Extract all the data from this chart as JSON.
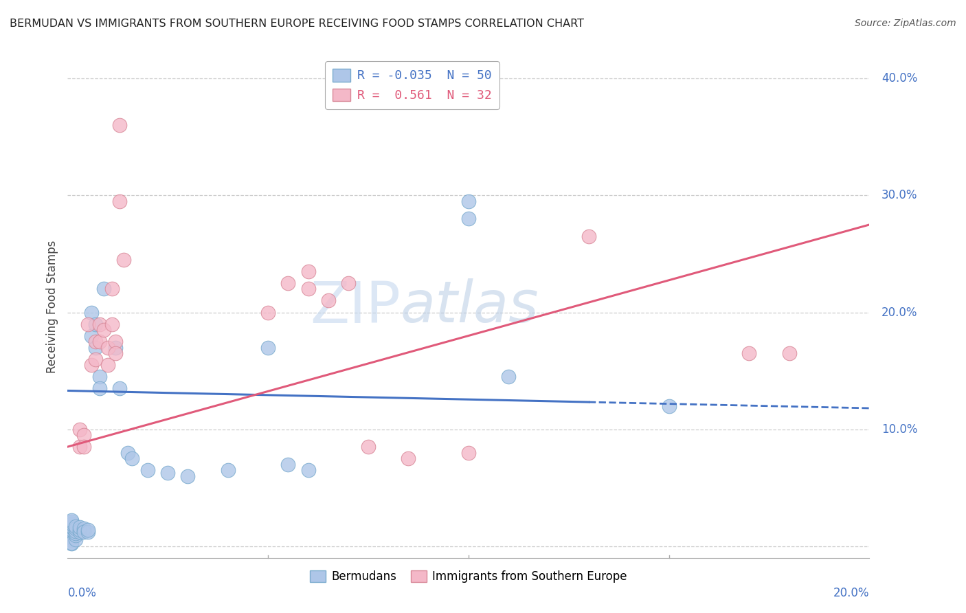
{
  "title": "BERMUDAN VS IMMIGRANTS FROM SOUTHERN EUROPE RECEIVING FOOD STAMPS CORRELATION CHART",
  "source": "Source: ZipAtlas.com",
  "ylabel": "Receiving Food Stamps",
  "xlim": [
    0.0,
    0.2
  ],
  "ylim": [
    -0.01,
    0.42
  ],
  "yticks": [
    0.0,
    0.1,
    0.2,
    0.3,
    0.4
  ],
  "ytick_labels": [
    "",
    "10.0%",
    "20.0%",
    "30.0%",
    "40.0%"
  ],
  "xtick_positions": [
    0.0,
    0.05,
    0.1,
    0.15,
    0.2
  ],
  "watermark_zip": "ZIP",
  "watermark_atlas": "atlas",
  "bermudans_color": "#aec6e8",
  "immigrants_color": "#f4b8c8",
  "bermudans_edge_color": "#7aabce",
  "immigrants_edge_color": "#d88898",
  "bermudans_line_color": "#4472c4",
  "immigrants_line_color": "#e05a7a",
  "legend_label_blue": "R = -0.035  N = 50",
  "legend_label_pink": "R =  0.561  N = 32",
  "blue_scatter": [
    [
      0.001,
      0.005
    ],
    [
      0.001,
      0.007
    ],
    [
      0.001,
      0.008
    ],
    [
      0.001,
      0.009
    ],
    [
      0.001,
      0.012
    ],
    [
      0.001,
      0.013
    ],
    [
      0.001,
      0.014
    ],
    [
      0.001,
      0.016
    ],
    [
      0.001,
      0.017
    ],
    [
      0.001,
      0.019
    ],
    [
      0.001,
      0.021
    ],
    [
      0.001,
      0.022
    ],
    [
      0.001,
      0.002
    ],
    [
      0.001,
      0.003
    ],
    [
      0.002,
      0.006
    ],
    [
      0.002,
      0.009
    ],
    [
      0.002,
      0.011
    ],
    [
      0.002,
      0.013
    ],
    [
      0.002,
      0.015
    ],
    [
      0.002,
      0.017
    ],
    [
      0.003,
      0.012
    ],
    [
      0.003,
      0.014
    ],
    [
      0.003,
      0.016
    ],
    [
      0.004,
      0.013
    ],
    [
      0.004,
      0.015
    ],
    [
      0.004,
      0.012
    ],
    [
      0.005,
      0.012
    ],
    [
      0.005,
      0.014
    ],
    [
      0.006,
      0.2
    ],
    [
      0.006,
      0.18
    ],
    [
      0.007,
      0.19
    ],
    [
      0.007,
      0.17
    ],
    [
      0.008,
      0.145
    ],
    [
      0.008,
      0.135
    ],
    [
      0.009,
      0.22
    ],
    [
      0.012,
      0.17
    ],
    [
      0.013,
      0.135
    ],
    [
      0.015,
      0.08
    ],
    [
      0.016,
      0.075
    ],
    [
      0.02,
      0.065
    ],
    [
      0.025,
      0.063
    ],
    [
      0.03,
      0.06
    ],
    [
      0.04,
      0.065
    ],
    [
      0.05,
      0.17
    ],
    [
      0.055,
      0.07
    ],
    [
      0.06,
      0.065
    ],
    [
      0.1,
      0.28
    ],
    [
      0.1,
      0.295
    ],
    [
      0.15,
      0.12
    ],
    [
      0.11,
      0.145
    ]
  ],
  "pink_scatter": [
    [
      0.003,
      0.085
    ],
    [
      0.003,
      0.1
    ],
    [
      0.004,
      0.095
    ],
    [
      0.004,
      0.085
    ],
    [
      0.005,
      0.19
    ],
    [
      0.006,
      0.155
    ],
    [
      0.007,
      0.16
    ],
    [
      0.007,
      0.175
    ],
    [
      0.008,
      0.19
    ],
    [
      0.008,
      0.175
    ],
    [
      0.009,
      0.185
    ],
    [
      0.01,
      0.17
    ],
    [
      0.01,
      0.155
    ],
    [
      0.011,
      0.22
    ],
    [
      0.011,
      0.19
    ],
    [
      0.012,
      0.175
    ],
    [
      0.012,
      0.165
    ],
    [
      0.013,
      0.295
    ],
    [
      0.013,
      0.36
    ],
    [
      0.014,
      0.245
    ],
    [
      0.05,
      0.2
    ],
    [
      0.055,
      0.225
    ],
    [
      0.06,
      0.235
    ],
    [
      0.06,
      0.22
    ],
    [
      0.065,
      0.21
    ],
    [
      0.07,
      0.225
    ],
    [
      0.075,
      0.085
    ],
    [
      0.085,
      0.075
    ],
    [
      0.1,
      0.08
    ],
    [
      0.13,
      0.265
    ],
    [
      0.17,
      0.165
    ],
    [
      0.18,
      0.165
    ]
  ],
  "blue_line": {
    "x0": 0.0,
    "y0": 0.133,
    "x1": 0.2,
    "y1": 0.118
  },
  "pink_line": {
    "x0": 0.0,
    "y0": 0.085,
    "x1": 0.2,
    "y1": 0.275
  }
}
